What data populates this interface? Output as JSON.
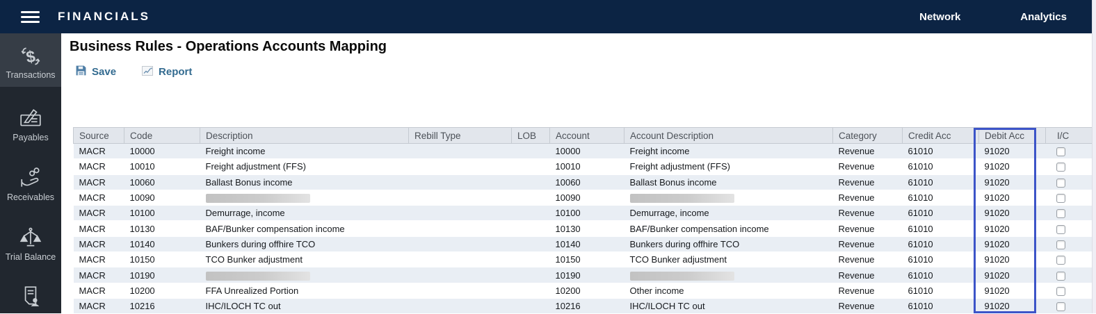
{
  "colors": {
    "topbar_bg": "#0c2444",
    "sidebar_bg": "#21272f",
    "sidebar_active_bg": "#363d46",
    "toolbar_link": "#336b90",
    "highlight_border": "#3c54c8",
    "header_row_bg": "#e2e6ec",
    "row_alt_bg": "#e9eef4"
  },
  "topbar": {
    "title": "FINANCIALS",
    "nav": {
      "network": "Network",
      "analytics": "Analytics"
    }
  },
  "sidebar": {
    "items": [
      {
        "label": "Transactions",
        "icon": "transactions-icon",
        "active": true
      },
      {
        "label": "Payables",
        "icon": "payables-icon",
        "active": false
      },
      {
        "label": "Receivables",
        "icon": "receivables-icon",
        "active": false
      },
      {
        "label": "Trial Balance",
        "icon": "trial-balance-icon",
        "active": false
      },
      {
        "label": "",
        "icon": "document-person-icon",
        "active": false
      }
    ]
  },
  "main": {
    "title": "Business Rules - Operations Accounts Mapping",
    "toolbar": {
      "save": "Save",
      "report": "Report"
    }
  },
  "table": {
    "columns": [
      "Source",
      "Code",
      "Description",
      "Rebill Type",
      "LOB",
      "Account",
      "Account Description",
      "Category",
      "Credit Acc",
      "Debit Acc",
      "I/C"
    ],
    "highlighted_column": "Debit Acc",
    "rows": [
      {
        "source": "MACR",
        "code": "10000",
        "description": "Freight income",
        "description_redacted": false,
        "rebill_type": "",
        "lob": "",
        "account": "10000",
        "account_description": "Freight income",
        "account_description_redacted": false,
        "category": "Revenue",
        "credit_acc": "61010",
        "debit_acc": "91020",
        "ic_checked": false
      },
      {
        "source": "MACR",
        "code": "10010",
        "description": "Freight adjustment (FFS)",
        "description_redacted": false,
        "rebill_type": "",
        "lob": "",
        "account": "10010",
        "account_description": "Freight adjustment (FFS)",
        "account_description_redacted": false,
        "category": "Revenue",
        "credit_acc": "61010",
        "debit_acc": "91020",
        "ic_checked": false
      },
      {
        "source": "MACR",
        "code": "10060",
        "description": "Ballast Bonus income",
        "description_redacted": false,
        "rebill_type": "",
        "lob": "",
        "account": "10060",
        "account_description": "Ballast Bonus income",
        "account_description_redacted": false,
        "category": "Revenue",
        "credit_acc": "61010",
        "debit_acc": "91020",
        "ic_checked": false
      },
      {
        "source": "MACR",
        "code": "10090",
        "description": "",
        "description_redacted": true,
        "rebill_type": "",
        "lob": "",
        "account": "10090",
        "account_description": "",
        "account_description_redacted": true,
        "category": "Revenue",
        "credit_acc": "61010",
        "debit_acc": "91020",
        "ic_checked": false
      },
      {
        "source": "MACR",
        "code": "10100",
        "description": "Demurrage, income",
        "description_redacted": false,
        "rebill_type": "",
        "lob": "",
        "account": "10100",
        "account_description": "Demurrage, income",
        "account_description_redacted": false,
        "category": "Revenue",
        "credit_acc": "61010",
        "debit_acc": "91020",
        "ic_checked": false
      },
      {
        "source": "MACR",
        "code": "10130",
        "description": "BAF/Bunker compensation income",
        "description_redacted": false,
        "rebill_type": "",
        "lob": "",
        "account": "10130",
        "account_description": "BAF/Bunker compensation income",
        "account_description_redacted": false,
        "category": "Revenue",
        "credit_acc": "61010",
        "debit_acc": "91020",
        "ic_checked": false
      },
      {
        "source": "MACR",
        "code": "10140",
        "description": "Bunkers during offhire TCO",
        "description_redacted": false,
        "rebill_type": "",
        "lob": "",
        "account": "10140",
        "account_description": "Bunkers during offhire TCO",
        "account_description_redacted": false,
        "category": "Revenue",
        "credit_acc": "61010",
        "debit_acc": "91020",
        "ic_checked": false
      },
      {
        "source": "MACR",
        "code": "10150",
        "description": "TCO Bunker adjustment",
        "description_redacted": false,
        "rebill_type": "",
        "lob": "",
        "account": "10150",
        "account_description": "TCO Bunker adjustment",
        "account_description_redacted": false,
        "category": "Revenue",
        "credit_acc": "61010",
        "debit_acc": "91020",
        "ic_checked": false
      },
      {
        "source": "MACR",
        "code": "10190",
        "description": "",
        "description_redacted": true,
        "rebill_type": "",
        "lob": "",
        "account": "10190",
        "account_description": "",
        "account_description_redacted": true,
        "category": "Revenue",
        "credit_acc": "61010",
        "debit_acc": "91020",
        "ic_checked": false
      },
      {
        "source": "MACR",
        "code": "10200",
        "description": "FFA Unrealized Portion",
        "description_redacted": false,
        "rebill_type": "",
        "lob": "",
        "account": "10200",
        "account_description": "Other income",
        "account_description_redacted": false,
        "category": "Revenue",
        "credit_acc": "61010",
        "debit_acc": "91020",
        "ic_checked": false
      },
      {
        "source": "MACR",
        "code": "10216",
        "description": "IHC/ILOCH TC out",
        "description_redacted": false,
        "rebill_type": "",
        "lob": "",
        "account": "10216",
        "account_description": "IHC/ILOCH TC out",
        "account_description_redacted": false,
        "category": "Revenue",
        "credit_acc": "61010",
        "debit_acc": "91020",
        "ic_checked": false
      }
    ]
  }
}
